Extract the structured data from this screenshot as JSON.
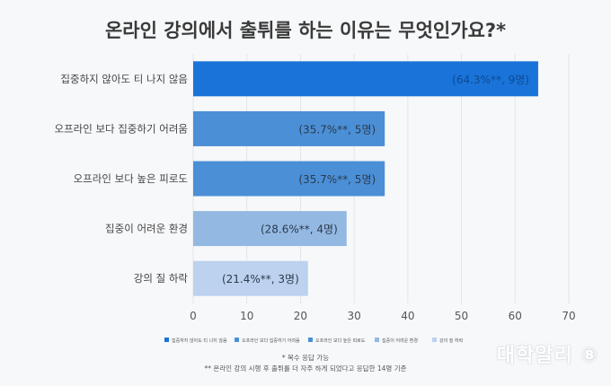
{
  "title": "온라인 강의에서 출튀를 하는 이유는 무엇인가요?*",
  "chart_data": {
    "type": "bar",
    "orientation": "horizontal",
    "categories": [
      "집중하지 않아도 티 나지 않음",
      "오프라인 보다 집중하기 어려움",
      "오프라인 보다 높은 피로도",
      "집중이 어려운 환경",
      "강의 질 하락"
    ],
    "values": [
      64.3,
      35.7,
      35.7,
      28.6,
      21.4
    ],
    "data_labels": [
      "(64.3%**, 9명)",
      "(35.7%**, 5명)",
      "(35.7%**, 5명)",
      "(28.6%**, 4명)",
      "(21.4%**, 3명)"
    ],
    "colors": [
      "#1a73d9",
      "#4b8fd6",
      "#4b8fd6",
      "#93b9e3",
      "#bcd2ee"
    ],
    "xlim": [
      0,
      70
    ],
    "xticks": [
      "0",
      "10",
      "20",
      "30",
      "40",
      "50",
      "60",
      "70"
    ],
    "grid": true,
    "legend_position": "bottom",
    "legend": [
      "집중하지 않아도 티 나지 않음",
      "오프라인 보다 집중하기 어려움",
      "오프라인 보다 높은 피로도",
      "집중이 어려운 환경",
      "강의 질 하락"
    ]
  },
  "footnotes": {
    "line1": "* 복수 응답 가능",
    "line2": "** 온라인 강의 시행 후 출튀를 더 자주 하게 되었다고 응답한 14명 기준"
  },
  "logo": "대학알리 ⑧"
}
